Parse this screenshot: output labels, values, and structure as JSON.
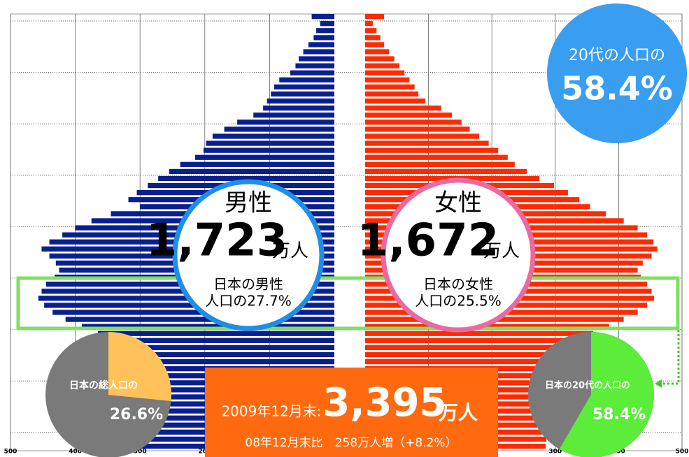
{
  "chart_data": [
    {
      "type": "pyramid",
      "series": [
        {
          "name": "男性",
          "color": "#0a1f8f",
          "values": [
            35,
            22,
            28,
            32,
            40,
            48,
            55,
            60,
            68,
            85,
            93,
            98,
            104,
            110,
            125,
            150,
            170,
            188,
            198,
            202,
            215,
            238,
            255,
            272,
            288,
            305,
            318,
            300,
            345,
            375,
            400,
            420,
            440,
            452,
            440,
            430,
            425,
            432,
            445,
            452,
            457,
            448,
            435,
            415,
            390,
            365,
            352,
            346,
            340,
            335,
            330,
            325,
            318,
            305,
            300,
            302,
            305,
            306,
            308,
            310,
            312,
            312
          ]
        },
        {
          "name": "女性",
          "color": "#ff2a00",
          "values": [
            30,
            12,
            18,
            24,
            30,
            38,
            46,
            54,
            62,
            70,
            78,
            84,
            95,
            120,
            137,
            152,
            165,
            180,
            195,
            210,
            225,
            236,
            255,
            275,
            298,
            320,
            338,
            355,
            380,
            408,
            430,
            445,
            455,
            461,
            452,
            438,
            430,
            435,
            445,
            452,
            456,
            445,
            430,
            408,
            385,
            360,
            348,
            342,
            336,
            330,
            325,
            320,
            315,
            308,
            304,
            300,
            296,
            292,
            290,
            288,
            286,
            285
          ]
        }
      ],
      "xlim": [
        0,
        500
      ],
      "xticks": [
        100,
        200,
        300,
        400,
        500
      ],
      "grid": true
    },
    {
      "type": "pie",
      "title": "日本の総人口の",
      "values": [
        26.6
      ],
      "value_labels": [
        "26.6%"
      ],
      "color": "#ffc25a",
      "rest_color": "#7a7a7a"
    },
    {
      "type": "pie",
      "title": "日本の20代の人口の",
      "values": [
        58.4
      ],
      "value_labels": [
        "58.4%"
      ],
      "color": "#5cec3a",
      "rest_color": "#7a7a7a"
    }
  ],
  "male": {
    "label": "男性",
    "number": "1,723",
    "unit": "万人",
    "share_line1": "日本の男性",
    "share_line2": "人口の27.7%"
  },
  "female": {
    "label": "女性",
    "number": "1,672",
    "unit": "万人",
    "share_line1": "日本の女性",
    "share_line2": "人口の25.5%"
  },
  "badge": {
    "line1": "20代の人口の",
    "line2": "58.4%"
  },
  "total": {
    "prefix": "2009年12月末:",
    "number": "3,395",
    "unit": "万人",
    "comparison": "08年12月末比　258万人増（+8.2%）"
  }
}
